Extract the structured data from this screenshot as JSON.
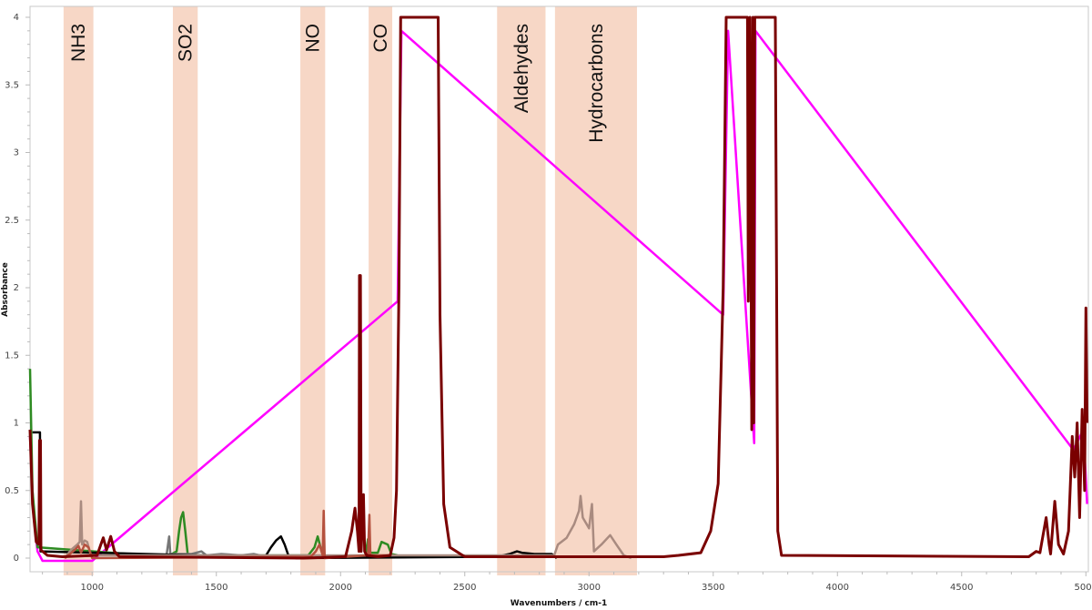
{
  "chart_data": {
    "type": "line",
    "title": "",
    "xlabel": "Wavenumbers / cm-1",
    "ylabel": "Absorbance",
    "xlim": [
      750,
      5010
    ],
    "ylim": [
      -0.11,
      4.08
    ],
    "xticks": [
      1000,
      1500,
      2000,
      2500,
      3000,
      3500,
      4000,
      4500,
      5000
    ],
    "yticks": [
      0,
      0.5,
      1,
      1.5,
      2,
      2.5,
      3,
      3.5,
      4
    ],
    "xtick_labels": [
      "1000",
      "1500",
      "2000",
      "2500",
      "3000",
      "3500",
      "4000",
      "4500",
      "5000"
    ],
    "ytick_labels": [
      "0",
      "0.5",
      "1",
      "1.5",
      "2",
      "2.5",
      "3",
      "3.5",
      "4"
    ],
    "grid": false,
    "band_color": "#f7d7c6",
    "bands": [
      {
        "label": "NH3",
        "range": [
          885,
          1005
        ]
      },
      {
        "label": "SO2",
        "range": [
          1325,
          1425
        ]
      },
      {
        "label": "NO",
        "range": [
          1838,
          1938
        ]
      },
      {
        "label": "CO",
        "range": [
          2113,
          2208
        ]
      },
      {
        "label": "Aldehydes",
        "range": [
          2630,
          2825
        ]
      },
      {
        "label": "Hydrocarbons",
        "range": [
          2863,
          3193
        ]
      }
    ],
    "series": [
      {
        "color": "#ff00ff",
        "points": [
          [
            750,
            0.9
          ],
          [
            765,
            0.3
          ],
          [
            780,
            0.05
          ],
          [
            800,
            -0.02
          ],
          [
            1000,
            -0.02
          ],
          [
            2230,
            1.9
          ],
          [
            2245,
            3.9
          ],
          [
            3540,
            1.8
          ],
          [
            3560,
            3.9
          ],
          [
            3665,
            0.85
          ],
          [
            3670,
            3.9
          ],
          [
            4950,
            0.8
          ],
          [
            4990,
            0.95
          ],
          [
            5005,
            0.4
          ]
        ]
      },
      {
        "color": "#2e8b22",
        "points": [
          [
            750,
            1.4
          ],
          [
            760,
            0.5
          ],
          [
            780,
            0.08
          ],
          [
            1300,
            0.01
          ],
          [
            1340,
            0.05
          ],
          [
            1350,
            0.2
          ],
          [
            1358,
            0.3
          ],
          [
            1366,
            0.34
          ],
          [
            1375,
            0.2
          ],
          [
            1385,
            0.02
          ],
          [
            1870,
            0.02
          ],
          [
            1895,
            0.08
          ],
          [
            1908,
            0.16
          ],
          [
            1925,
            0.04
          ],
          [
            1940,
            0.01
          ],
          [
            2100,
            0.02
          ],
          [
            2110,
            0.14
          ],
          [
            2120,
            0.04
          ],
          [
            2150,
            0.04
          ],
          [
            2165,
            0.12
          ],
          [
            2190,
            0.1
          ],
          [
            2205,
            0.03
          ],
          [
            2230,
            0.02
          ]
        ]
      },
      {
        "color": "#777777",
        "points": [
          [
            1280,
            0.01
          ],
          [
            1300,
            0.03
          ],
          [
            1310,
            0.16
          ],
          [
            1315,
            0.03
          ],
          [
            1400,
            0.03
          ],
          [
            1440,
            0.05
          ],
          [
            1460,
            0.02
          ],
          [
            1520,
            0.03
          ],
          [
            1600,
            0.02
          ],
          [
            1650,
            0.03
          ],
          [
            1700,
            0.01
          ]
        ]
      },
      {
        "color": "#000000",
        "points": [
          [
            760,
            0.93
          ],
          [
            790,
            0.93
          ],
          [
            792,
            0.05
          ],
          [
            1650,
            0.01
          ],
          [
            1700,
            0.02
          ],
          [
            1720,
            0.08
          ],
          [
            1740,
            0.13
          ],
          [
            1760,
            0.16
          ],
          [
            1775,
            0.1
          ],
          [
            1790,
            0.02
          ],
          [
            1820,
            0.0
          ],
          [
            2630,
            0.01
          ],
          [
            2680,
            0.03
          ],
          [
            2710,
            0.05
          ],
          [
            2730,
            0.04
          ],
          [
            2780,
            0.03
          ],
          [
            2850,
            0.03
          ],
          [
            2870,
            0.0
          ]
        ]
      },
      {
        "color": "#a98b80",
        "points": [
          [
            890,
            0.0
          ],
          [
            915,
            0.06
          ],
          [
            940,
            0.1
          ],
          [
            950,
            0.12
          ],
          [
            955,
            0.42
          ],
          [
            960,
            0.1
          ],
          [
            970,
            0.13
          ],
          [
            980,
            0.12
          ],
          [
            995,
            0.02
          ],
          [
            2860,
            0.02
          ],
          [
            2875,
            0.1
          ],
          [
            2910,
            0.15
          ],
          [
            2940,
            0.25
          ],
          [
            2960,
            0.35
          ],
          [
            2966,
            0.46
          ],
          [
            2975,
            0.3
          ],
          [
            3000,
            0.22
          ],
          [
            3012,
            0.4
          ],
          [
            3020,
            0.05
          ],
          [
            3050,
            0.1
          ],
          [
            3085,
            0.17
          ],
          [
            3110,
            0.1
          ],
          [
            3140,
            0.02
          ],
          [
            3170,
            0.0
          ]
        ]
      },
      {
        "color": "#b5513e",
        "points": [
          [
            890,
            0.0
          ],
          [
            930,
            0.06
          ],
          [
            945,
            0.09
          ],
          [
            955,
            0.04
          ],
          [
            970,
            0.1
          ],
          [
            985,
            0.08
          ],
          [
            1000,
            0.0
          ],
          [
            1880,
            0.01
          ],
          [
            1900,
            0.05
          ],
          [
            1915,
            0.1
          ],
          [
            1928,
            0.02
          ],
          [
            1932,
            0.35
          ],
          [
            1936,
            0.0
          ],
          [
            2110,
            0.02
          ],
          [
            2116,
            0.32
          ],
          [
            2120,
            0.02
          ],
          [
            2200,
            0.02
          ]
        ]
      },
      {
        "color": "#7a0000",
        "points": [
          [
            750,
            0.95
          ],
          [
            760,
            0.4
          ],
          [
            775,
            0.12
          ],
          [
            786,
            0.1
          ],
          [
            788,
            0.87
          ],
          [
            792,
            0.87
          ],
          [
            794,
            0.06
          ],
          [
            820,
            0.02
          ],
          [
            880,
            0.01
          ],
          [
            1020,
            0.02
          ],
          [
            1035,
            0.1
          ],
          [
            1045,
            0.15
          ],
          [
            1058,
            0.06
          ],
          [
            1075,
            0.16
          ],
          [
            1090,
            0.05
          ],
          [
            1110,
            0.01
          ],
          [
            1850,
            0.0
          ],
          [
            2020,
            0.01
          ],
          [
            2045,
            0.2
          ],
          [
            2058,
            0.37
          ],
          [
            2068,
            0.2
          ],
          [
            2074,
            0.05
          ],
          [
            2076,
            2.09
          ],
          [
            2080,
            2.09
          ],
          [
            2083,
            0.05
          ],
          [
            2092,
            0.47
          ],
          [
            2097,
            0.05
          ],
          [
            2105,
            0.02
          ],
          [
            2150,
            0.01
          ],
          [
            2200,
            0.02
          ],
          [
            2215,
            0.15
          ],
          [
            2225,
            0.5
          ],
          [
            2235,
            2.0
          ],
          [
            2242,
            4.0
          ],
          [
            2393,
            4.0
          ],
          [
            2400,
            1.8
          ],
          [
            2415,
            0.4
          ],
          [
            2440,
            0.08
          ],
          [
            2500,
            0.01
          ],
          [
            3300,
            0.01
          ],
          [
            3360,
            0.02
          ],
          [
            3450,
            0.04
          ],
          [
            3490,
            0.2
          ],
          [
            3520,
            0.55
          ],
          [
            3540,
            2.0
          ],
          [
            3552,
            4.0
          ],
          [
            3638,
            4.0
          ],
          [
            3641,
            1.9
          ],
          [
            3648,
            4.0
          ],
          [
            3655,
            0.95
          ],
          [
            3660,
            4.0
          ],
          [
            3663,
            1.0
          ],
          [
            3667,
            4.0
          ],
          [
            3750,
            4.0
          ],
          [
            3760,
            0.2
          ],
          [
            3775,
            0.02
          ],
          [
            4770,
            0.01
          ],
          [
            4800,
            0.05
          ],
          [
            4815,
            0.04
          ],
          [
            4840,
            0.3
          ],
          [
            4852,
            0.1
          ],
          [
            4858,
            0.03
          ],
          [
            4875,
            0.42
          ],
          [
            4890,
            0.1
          ],
          [
            4910,
            0.03
          ],
          [
            4930,
            0.2
          ],
          [
            4945,
            0.9
          ],
          [
            4955,
            0.6
          ],
          [
            4965,
            1.0
          ],
          [
            4975,
            0.3
          ],
          [
            4985,
            1.1
          ],
          [
            4995,
            0.5
          ],
          [
            5000,
            1.85
          ],
          [
            5005,
            1.0
          ]
        ]
      }
    ]
  }
}
